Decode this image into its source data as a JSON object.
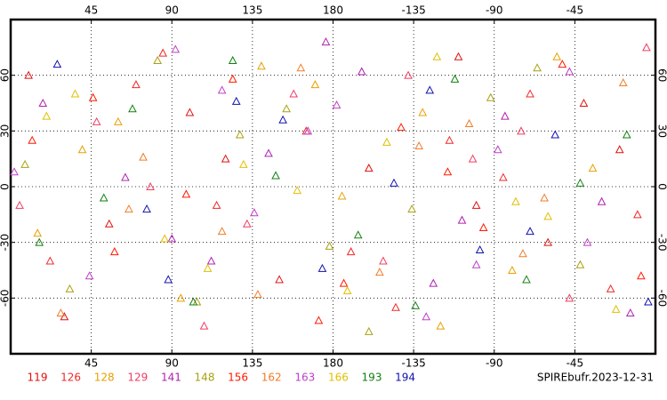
{
  "chart_data": {
    "type": "map-scatter",
    "xlim": [
      0,
      360
    ],
    "ylim": [
      -90,
      90
    ],
    "xticks": [
      45,
      90,
      135,
      180,
      {
        "value": 225,
        "label": "-135"
      },
      {
        "value": 270,
        "label": "-90"
      },
      {
        "value": 315,
        "label": "-45"
      }
    ],
    "yticks": [
      60,
      30,
      0,
      -30,
      -60
    ],
    "grid": true,
    "title": "SPIREbufr.2023-12-31",
    "series": [
      {
        "name": "119",
        "color": "#e01010",
        "x": [
          10,
          55,
          100,
          150,
          200,
          250,
          300,
          340,
          30,
          120,
          260,
          320
        ],
        "y": [
          60,
          -20,
          40,
          -50,
          10,
          70,
          -30,
          20,
          -70,
          15,
          -10,
          45
        ]
      },
      {
        "name": "126",
        "color": "#f02828",
        "x": [
          22,
          70,
          115,
          165,
          215,
          245,
          290,
          350,
          85,
          190,
          275,
          335
        ],
        "y": [
          -40,
          55,
          -10,
          30,
          -65,
          25,
          50,
          -15,
          72,
          -35,
          5,
          -55
        ]
      },
      {
        "name": "128",
        "color": "#e8a000",
        "x": [
          40,
          95,
          140,
          185,
          230,
          280,
          325,
          15,
          60,
          170,
          240,
          305
        ],
        "y": [
          20,
          -60,
          65,
          -5,
          40,
          -45,
          10,
          -25,
          35,
          55,
          -75,
          70
        ]
      },
      {
        "name": "129",
        "color": "#f03c64",
        "x": [
          5,
          48,
          108,
          158,
          208,
          258,
          312,
          355,
          78,
          132,
          222,
          285
        ],
        "y": [
          -10,
          35,
          -75,
          50,
          -40,
          15,
          -60,
          75,
          0,
          -20,
          60,
          30
        ]
      },
      {
        "name": "141",
        "color": "#b020b0",
        "x": [
          18,
          64,
          112,
          144,
          196,
          236,
          276,
          330,
          90,
          176,
          252,
          346
        ],
        "y": [
          45,
          5,
          -40,
          18,
          62,
          -52,
          38,
          -8,
          -28,
          78,
          -18,
          -68
        ]
      },
      {
        "name": "148",
        "color": "#a8a010",
        "x": [
          33,
          82,
          128,
          178,
          224,
          268,
          318,
          8,
          104,
          154,
          294,
          200
        ],
        "y": [
          -55,
          68,
          28,
          -32,
          -12,
          48,
          -42,
          12,
          -62,
          42,
          64,
          -78
        ]
      },
      {
        "name": "156",
        "color": "#ff1a00",
        "x": [
          12,
          58,
          124,
          172,
          218,
          264,
          308,
          352,
          46,
          98,
          186,
          244
        ],
        "y": [
          25,
          -35,
          58,
          -72,
          32,
          -22,
          66,
          -48,
          48,
          -4,
          -52,
          8
        ]
      },
      {
        "name": "162",
        "color": "#f07c28",
        "x": [
          28,
          74,
          118,
          162,
          206,
          256,
          298,
          342,
          66,
          138,
          228,
          286
        ],
        "y": [
          -68,
          16,
          -24,
          64,
          -46,
          34,
          -6,
          56,
          -12,
          -58,
          22,
          -36
        ]
      },
      {
        "name": "163",
        "color": "#c040c8",
        "x": [
          2,
          44,
          92,
          136,
          182,
          232,
          272,
          322,
          118,
          166,
          260,
          312
        ],
        "y": [
          8,
          -48,
          74,
          -14,
          44,
          -70,
          20,
          -30,
          52,
          30,
          -42,
          62
        ]
      },
      {
        "name": "166",
        "color": "#e0c000",
        "x": [
          36,
          86,
          130,
          188,
          238,
          282,
          338,
          20,
          110,
          160,
          210,
          300
        ],
        "y": [
          50,
          -28,
          12,
          -56,
          70,
          -8,
          -66,
          38,
          -44,
          -2,
          24,
          -16
        ]
      },
      {
        "name": "193",
        "color": "#108010",
        "x": [
          16,
          68,
          102,
          148,
          194,
          248,
          288,
          344,
          52,
          124,
          226,
          318
        ],
        "y": [
          -30,
          42,
          -62,
          6,
          -26,
          58,
          -50,
          28,
          -6,
          68,
          -64,
          2
        ]
      },
      {
        "name": "194",
        "color": "#1010b0",
        "x": [
          26,
          76,
          126,
          174,
          214,
          262,
          304,
          356,
          88,
          152,
          234,
          290
        ],
        "y": [
          66,
          -12,
          46,
          -44,
          2,
          -34,
          28,
          -62,
          -50,
          36,
          52,
          -24
        ]
      }
    ]
  }
}
